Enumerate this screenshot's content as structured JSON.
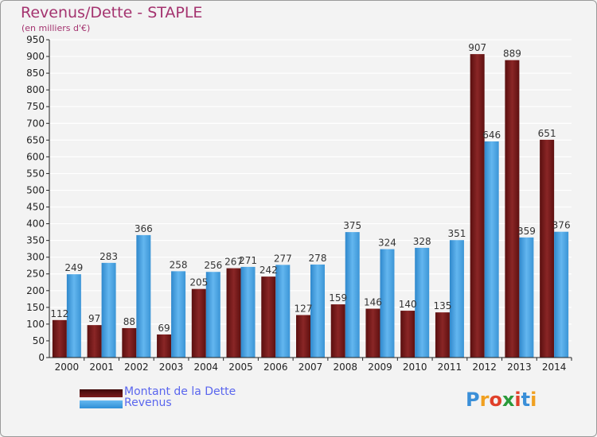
{
  "header": {
    "title": "Revenus/Dette - STAPLE",
    "subtitle": "(en milliers d'€)"
  },
  "chart_data": {
    "type": "bar",
    "title": "Revenus/Dette - STAPLE",
    "subtitle": "(en milliers d'€)",
    "categories": [
      "2000",
      "2001",
      "2002",
      "2003",
      "2004",
      "2005",
      "2006",
      "2007",
      "2008",
      "2009",
      "2010",
      "2011",
      "2012",
      "2013",
      "2014"
    ],
    "series": [
      {
        "name": "Montant de la Dette",
        "color": "#7b1b1b",
        "values": [
          112,
          97,
          88,
          69,
          205,
          267,
          242,
          127,
          159,
          146,
          140,
          135,
          907,
          889,
          651
        ]
      },
      {
        "name": "Revenus",
        "color": "#3a9ae0",
        "values": [
          249,
          283,
          366,
          258,
          256,
          271,
          277,
          278,
          375,
          324,
          328,
          351,
          646,
          359,
          376
        ]
      }
    ],
    "ylim": [
      0,
      950
    ],
    "yticks": [
      0,
      50,
      100,
      150,
      200,
      250,
      300,
      350,
      400,
      450,
      500,
      550,
      600,
      650,
      700,
      750,
      800,
      850,
      900,
      950
    ],
    "grid": true,
    "legend_position": "bottom-left"
  },
  "legend": {
    "debt_label": "Montant de la Dette",
    "revenue_label": "Revenus"
  },
  "logo": {
    "text": "Proxiti",
    "letters": [
      "P",
      "r",
      "o",
      "x",
      "i",
      "t",
      "i"
    ],
    "colors": [
      "#3a8fd8",
      "#f0a020",
      "#e0402a",
      "#2a9a3a",
      "#e0402a",
      "#3a8fd8",
      "#f0a020"
    ]
  }
}
